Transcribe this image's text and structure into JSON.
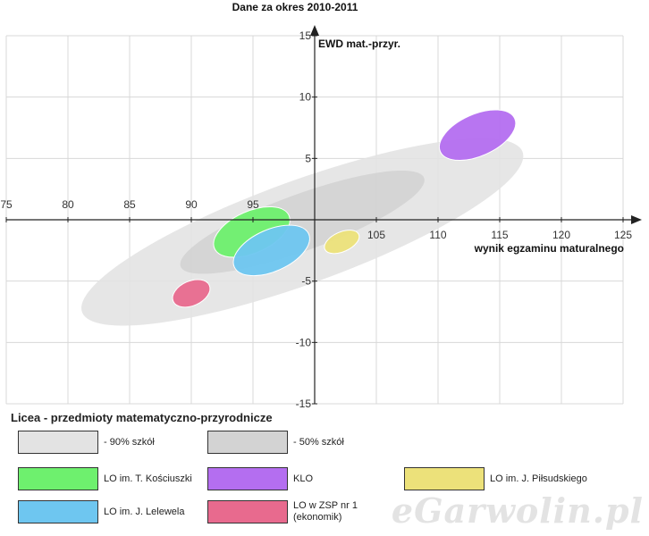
{
  "chart_data": {
    "type": "scatter",
    "title": "Dane za okres 2010-2011",
    "xlabel": "wynik egzaminu maturalnego",
    "ylabel": "EWD mat.-przyr.",
    "xlim": [
      75,
      125
    ],
    "ylim": [
      -15,
      15
    ],
    "x_ticks": [
      75,
      80,
      85,
      90,
      95,
      105,
      110,
      115,
      120,
      125
    ],
    "y_ticks": [
      15,
      10,
      5,
      -5,
      -10,
      -15
    ],
    "grid": true,
    "legend_position": "bottom",
    "series": [
      {
        "name": "- 90% szkół",
        "cx": 99.0,
        "cy": -1.0,
        "rx": 19.0,
        "ry": 4.2,
        "angle": 20,
        "color": "#e3e3e3"
      },
      {
        "name": "- 50% szkół",
        "cx": 99.0,
        "cy": -0.2,
        "rx": 10.5,
        "ry": 2.3,
        "angle": 20,
        "color": "#d3d3d3"
      },
      {
        "name": "LO im. T. Kościuszki",
        "x": 94.9,
        "y": -1.0,
        "rx": 3.3,
        "ry": 1.7,
        "angle": 24,
        "color": "#6ef06e"
      },
      {
        "name": "KLO",
        "x": 113.2,
        "y": 6.9,
        "rx": 3.3,
        "ry": 1.7,
        "angle": 24,
        "color": "#b46ef0"
      },
      {
        "name": "LO im. J. Piłsudskiego",
        "x": 102.2,
        "y": -1.8,
        "rx": 1.5,
        "ry": 0.8,
        "angle": 24,
        "color": "#ece17a"
      },
      {
        "name": "LO im. J. Lelewela",
        "x": 96.5,
        "y": -2.5,
        "rx": 3.3,
        "ry": 1.7,
        "angle": 24,
        "color": "#6ec6f0"
      },
      {
        "name": "LO w ZSP nr 1 (ekonomik)",
        "x": 90.0,
        "y": -6.0,
        "rx": 1.6,
        "ry": 1.0,
        "angle": 24,
        "color": "#e86a8e"
      }
    ]
  },
  "legend": {
    "title": "Licea - przedmioty matematyczno-przyrodnicze",
    "items": [
      {
        "label": "- 90% szkół",
        "color": "#e3e3e3"
      },
      {
        "label": "- 50% szkół",
        "color": "#d3d3d3"
      },
      {
        "label": "LO im. T. Kościuszki",
        "color": "#6ef06e"
      },
      {
        "label": "KLO",
        "color": "#b46ef0"
      },
      {
        "label": "LO im. J. Piłsudskiego",
        "color": "#ece17a"
      },
      {
        "label": "LO im. J. Lelewela",
        "color": "#6ec6f0"
      },
      {
        "label": "LO w ZSP nr 1 (ekonomik)",
        "label_line1": "LO w ZSP nr 1",
        "label_line2": "(ekonomik)",
        "color": "#e86a8e"
      }
    ]
  },
  "watermark": "eGarwolin.pl"
}
